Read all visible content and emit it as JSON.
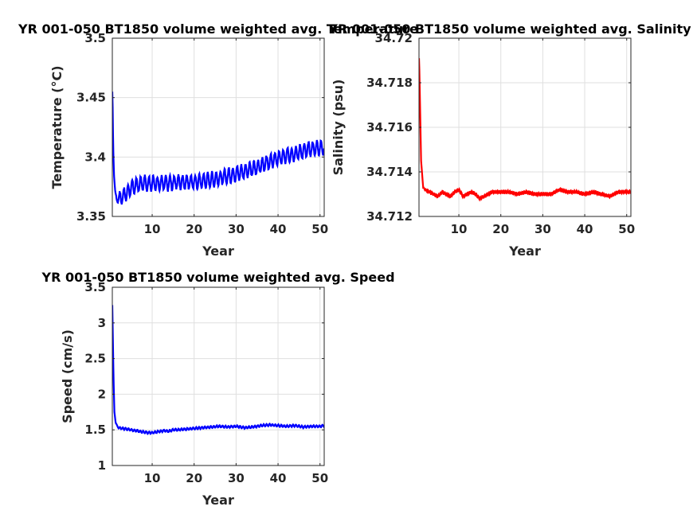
{
  "chart_data": [
    {
      "type": "line",
      "title": "YR 001-050 BT1850 volume weighted avg. Temperature",
      "xlabel": "Year",
      "ylabel": "Temperature (°C)",
      "xlim": [
        0.5,
        51
      ],
      "ylim": [
        3.35,
        3.5
      ],
      "xticks": [
        10,
        20,
        30,
        40,
        50
      ],
      "yticks": [
        3.35,
        3.4,
        3.45,
        3.5
      ],
      "xtick_labels": [
        "10",
        "20",
        "30",
        "40",
        "50"
      ],
      "ytick_labels": [
        "3.35",
        "3.4",
        "3.45",
        "3.5"
      ],
      "grid": true,
      "color": "#0000ff",
      "series": [
        {
          "x": [
            0.5,
            0.6,
            0.7,
            0.9,
            1.2,
            1.5,
            2,
            3,
            4,
            5,
            6,
            7,
            8,
            10,
            12,
            14,
            16,
            18,
            20,
            22,
            24,
            26,
            28,
            30,
            32,
            34,
            36,
            38,
            40,
            42,
            44,
            46,
            48,
            50,
            51
          ],
          "values": [
            3.455,
            3.44,
            3.41,
            3.385,
            3.37,
            3.365,
            3.365,
            3.367,
            3.37,
            3.374,
            3.376,
            3.377,
            3.378,
            3.378,
            3.378,
            3.378,
            3.379,
            3.379,
            3.379,
            3.38,
            3.381,
            3.382,
            3.384,
            3.386,
            3.388,
            3.39,
            3.393,
            3.396,
            3.399,
            3.401,
            3.403,
            3.405,
            3.407,
            3.408,
            3.408
          ],
          "oscillation_amplitude": 0.006,
          "oscillation_period": 1
        }
      ]
    },
    {
      "type": "line",
      "title": "YR 001-050 BT1850 volume weighted avg. Salinity",
      "xlabel": "Year",
      "ylabel": "Salinity (psu)",
      "xlim": [
        0.5,
        51
      ],
      "ylim": [
        34.712,
        34.72
      ],
      "xticks": [
        10,
        20,
        30,
        40,
        50
      ],
      "yticks": [
        34.712,
        34.714,
        34.716,
        34.718,
        34.72
      ],
      "xtick_labels": [
        "10",
        "20",
        "30",
        "40",
        "50"
      ],
      "ytick_labels": [
        "34.712",
        "34.714",
        "34.716",
        "34.718",
        "34.72"
      ],
      "grid": true,
      "color": "#ff0000",
      "series": [
        {
          "x": [
            0.5,
            0.6,
            0.8,
            1,
            1.5,
            2,
            3,
            4,
            5,
            6,
            7,
            8,
            9,
            10,
            11,
            12,
            13,
            14,
            15,
            16,
            17,
            18,
            20,
            22,
            24,
            26,
            28,
            30,
            32,
            34,
            36,
            38,
            40,
            42,
            44,
            46,
            48,
            50,
            51
          ],
          "values": [
            34.7191,
            34.7185,
            34.7165,
            34.7145,
            34.7133,
            34.7132,
            34.7131,
            34.713,
            34.7129,
            34.7131,
            34.713,
            34.7129,
            34.7131,
            34.7132,
            34.7129,
            34.713,
            34.7131,
            34.713,
            34.7128,
            34.7129,
            34.713,
            34.7131,
            34.7131,
            34.7131,
            34.713,
            34.7131,
            34.713,
            34.713,
            34.713,
            34.7132,
            34.7131,
            34.7131,
            34.713,
            34.7131,
            34.713,
            34.7129,
            34.7131,
            34.7131,
            34.7131
          ],
          "oscillation_amplitude": 6e-05,
          "oscillation_period": 0.5
        }
      ]
    },
    {
      "type": "line",
      "title": "YR 001-050 BT1850 volume weighted avg. Speed",
      "xlabel": "Year",
      "ylabel": "Speed (cm/s)",
      "xlim": [
        0.5,
        51
      ],
      "ylim": [
        1,
        3.5
      ],
      "xticks": [
        10,
        20,
        30,
        40,
        50
      ],
      "yticks": [
        1,
        1.5,
        2,
        2.5,
        3,
        3.5
      ],
      "xtick_labels": [
        "10",
        "20",
        "30",
        "40",
        "50"
      ],
      "ytick_labels": [
        "1",
        "1.5",
        "2",
        "2.5",
        "3",
        "3.5"
      ],
      "grid": true,
      "color": "#0000ff",
      "series": [
        {
          "x": [
            0.5,
            0.6,
            0.8,
            1,
            1.3,
            1.7,
            2,
            3,
            4,
            5,
            6,
            7,
            8,
            9,
            10,
            11,
            12,
            13,
            14,
            15,
            16,
            18,
            20,
            22,
            24,
            26,
            28,
            30,
            32,
            34,
            36,
            38,
            40,
            42,
            44,
            46,
            48,
            50,
            51
          ],
          "values": [
            3.25,
            2.9,
            2.2,
            1.75,
            1.6,
            1.55,
            1.53,
            1.52,
            1.51,
            1.5,
            1.49,
            1.48,
            1.47,
            1.46,
            1.46,
            1.47,
            1.48,
            1.49,
            1.48,
            1.5,
            1.5,
            1.51,
            1.52,
            1.53,
            1.54,
            1.55,
            1.54,
            1.55,
            1.53,
            1.54,
            1.56,
            1.57,
            1.56,
            1.55,
            1.56,
            1.54,
            1.55,
            1.55,
            1.56
          ],
          "oscillation_amplitude": 0.015,
          "oscillation_period": 0.7
        }
      ]
    }
  ]
}
